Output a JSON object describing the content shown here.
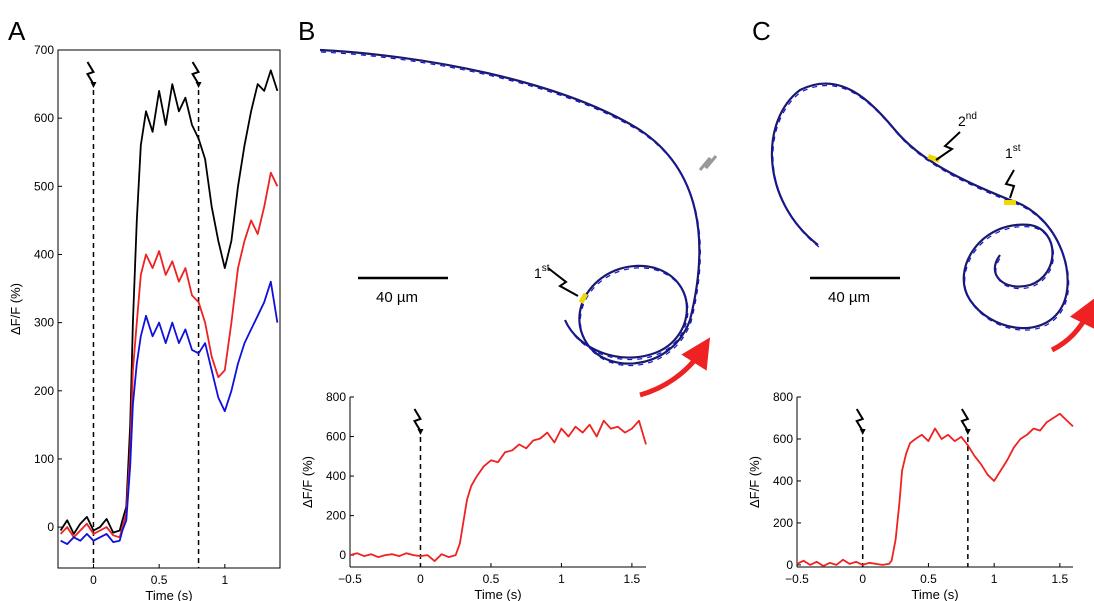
{
  "panels": {
    "a": "A",
    "b": "B",
    "c": "C"
  },
  "scale_label": "40 µm",
  "annotations": {
    "first": "1",
    "first_sup": "st",
    "second": "2",
    "second_sup": "nd"
  },
  "colors": {
    "black": "#000000",
    "red": "#ee2222",
    "blue": "#1010dd",
    "arrow_red": "#ee2222",
    "marker": "#f0d800",
    "path_outline": "#1a1a6a",
    "stim_gray": "#999999"
  },
  "chart_data": [
    {
      "panel": "A",
      "type": "line",
      "xlabel": "Time (s)",
      "ylabel": "ΔF/F (%)",
      "xlim": [
        -0.27,
        1.42
      ],
      "ylim": [
        -60,
        700
      ],
      "xticks": [
        0,
        0.5,
        1
      ],
      "xtick_labels": [
        "0",
        "0.5",
        "1"
      ],
      "yticks": [
        0,
        100,
        200,
        300,
        400,
        500,
        600,
        700
      ],
      "stimulus_times": [
        0,
        0.8
      ],
      "series": [
        {
          "color": "black",
          "x": [
            -0.25,
            -0.2,
            -0.15,
            -0.1,
            -0.05,
            0,
            0.05,
            0.1,
            0.15,
            0.2,
            0.22,
            0.25,
            0.28,
            0.3,
            0.33,
            0.36,
            0.4,
            0.45,
            0.5,
            0.55,
            0.6,
            0.65,
            0.7,
            0.75,
            0.8,
            0.85,
            0.9,
            0.95,
            1.0,
            1.05,
            1.1,
            1.15,
            1.2,
            1.25,
            1.3,
            1.35,
            1.4
          ],
          "y": [
            -5,
            10,
            -10,
            5,
            15,
            -5,
            0,
            12,
            -8,
            -5,
            10,
            30,
            150,
            300,
            450,
            560,
            610,
            580,
            640,
            590,
            650,
            610,
            630,
            590,
            570,
            540,
            470,
            420,
            380,
            420,
            500,
            560,
            610,
            650,
            640,
            670,
            640
          ]
        },
        {
          "color": "red",
          "x": [
            -0.25,
            -0.2,
            -0.15,
            -0.1,
            -0.05,
            0,
            0.05,
            0.1,
            0.15,
            0.2,
            0.22,
            0.25,
            0.28,
            0.3,
            0.33,
            0.36,
            0.4,
            0.45,
            0.5,
            0.55,
            0.6,
            0.65,
            0.7,
            0.75,
            0.8,
            0.85,
            0.9,
            0.95,
            1.0,
            1.05,
            1.1,
            1.15,
            1.2,
            1.25,
            1.3,
            1.35,
            1.4
          ],
          "y": [
            -10,
            0,
            -15,
            -5,
            5,
            -10,
            -5,
            0,
            -12,
            -15,
            0,
            20,
            110,
            230,
            300,
            370,
            400,
            380,
            405,
            370,
            390,
            360,
            380,
            340,
            330,
            300,
            250,
            220,
            230,
            300,
            380,
            420,
            450,
            430,
            470,
            520,
            500
          ]
        },
        {
          "color": "blue",
          "x": [
            -0.25,
            -0.2,
            -0.15,
            -0.1,
            -0.05,
            0,
            0.05,
            0.1,
            0.15,
            0.2,
            0.22,
            0.25,
            0.28,
            0.3,
            0.33,
            0.36,
            0.4,
            0.45,
            0.5,
            0.55,
            0.6,
            0.65,
            0.7,
            0.75,
            0.8,
            0.85,
            0.9,
            0.95,
            1.0,
            1.05,
            1.1,
            1.15,
            1.2,
            1.25,
            1.3,
            1.35,
            1.4
          ],
          "y": [
            -20,
            -25,
            -15,
            -20,
            -10,
            -20,
            -15,
            -10,
            -22,
            -20,
            -5,
            10,
            90,
            180,
            240,
            280,
            310,
            280,
            300,
            270,
            300,
            270,
            290,
            260,
            255,
            270,
            230,
            190,
            170,
            200,
            240,
            270,
            290,
            310,
            330,
            360,
            300
          ]
        }
      ]
    },
    {
      "panel": "B",
      "type": "line",
      "xlabel": "Time (s)",
      "ylabel": "ΔF/F (%)",
      "xlim": [
        -0.5,
        1.6
      ],
      "ylim": [
        -60,
        800
      ],
      "xticks": [
        -0.5,
        0,
        0.5,
        1,
        1.5
      ],
      "xtick_labels": [
        "−0.5",
        "0",
        "0.5",
        "1",
        "1.5"
      ],
      "yticks": [
        0,
        200,
        400,
        600,
        800
      ],
      "stimulus_times": [
        0
      ],
      "series": [
        {
          "color": "red",
          "x": [
            -0.5,
            -0.45,
            -0.4,
            -0.35,
            -0.3,
            -0.25,
            -0.2,
            -0.15,
            -0.1,
            -0.05,
            0,
            0.05,
            0.1,
            0.15,
            0.2,
            0.25,
            0.28,
            0.3,
            0.33,
            0.36,
            0.4,
            0.45,
            0.5,
            0.55,
            0.6,
            0.65,
            0.7,
            0.75,
            0.8,
            0.85,
            0.9,
            0.95,
            1.0,
            1.05,
            1.1,
            1.15,
            1.2,
            1.25,
            1.3,
            1.35,
            1.4,
            1.45,
            1.5,
            1.55,
            1.6
          ],
          "y": [
            0,
            10,
            -5,
            5,
            -10,
            0,
            5,
            -5,
            10,
            0,
            -5,
            0,
            -30,
            5,
            -10,
            0,
            60,
            150,
            280,
            350,
            400,
            450,
            480,
            470,
            520,
            530,
            560,
            540,
            580,
            590,
            620,
            570,
            640,
            600,
            650,
            620,
            660,
            600,
            680,
            640,
            650,
            620,
            640,
            680,
            560
          ]
        }
      ]
    },
    {
      "panel": "C",
      "type": "line",
      "xlabel": "Time (s)",
      "ylabel": "ΔF/F (%)",
      "xlim": [
        -0.5,
        1.6
      ],
      "ylim": [
        -10,
        800
      ],
      "xticks": [
        -0.5,
        0,
        0.5,
        1,
        1.5
      ],
      "xtick_labels": [
        "−0.5",
        "0",
        "0.5",
        "1",
        "1.5"
      ],
      "yticks": [
        0,
        200,
        400,
        600,
        800
      ],
      "stimulus_times": [
        0,
        0.8
      ],
      "series": [
        {
          "color": "red",
          "x": [
            -0.5,
            -0.45,
            -0.4,
            -0.35,
            -0.3,
            -0.25,
            -0.2,
            -0.15,
            -0.1,
            -0.05,
            0,
            0.05,
            0.1,
            0.15,
            0.2,
            0.22,
            0.25,
            0.28,
            0.3,
            0.33,
            0.36,
            0.4,
            0.45,
            0.5,
            0.55,
            0.6,
            0.65,
            0.7,
            0.75,
            0.8,
            0.85,
            0.9,
            0.95,
            1.0,
            1.05,
            1.1,
            1.15,
            1.2,
            1.25,
            1.3,
            1.35,
            1.4,
            1.45,
            1.5,
            1.55,
            1.6
          ],
          "y": [
            5,
            20,
            0,
            15,
            -5,
            10,
            0,
            25,
            5,
            15,
            0,
            10,
            5,
            0,
            5,
            20,
            120,
            300,
            450,
            530,
            580,
            600,
            620,
            590,
            650,
            600,
            620,
            590,
            610,
            570,
            520,
            480,
            430,
            400,
            450,
            500,
            560,
            600,
            620,
            650,
            640,
            680,
            700,
            720,
            690,
            660
          ]
        }
      ]
    }
  ]
}
